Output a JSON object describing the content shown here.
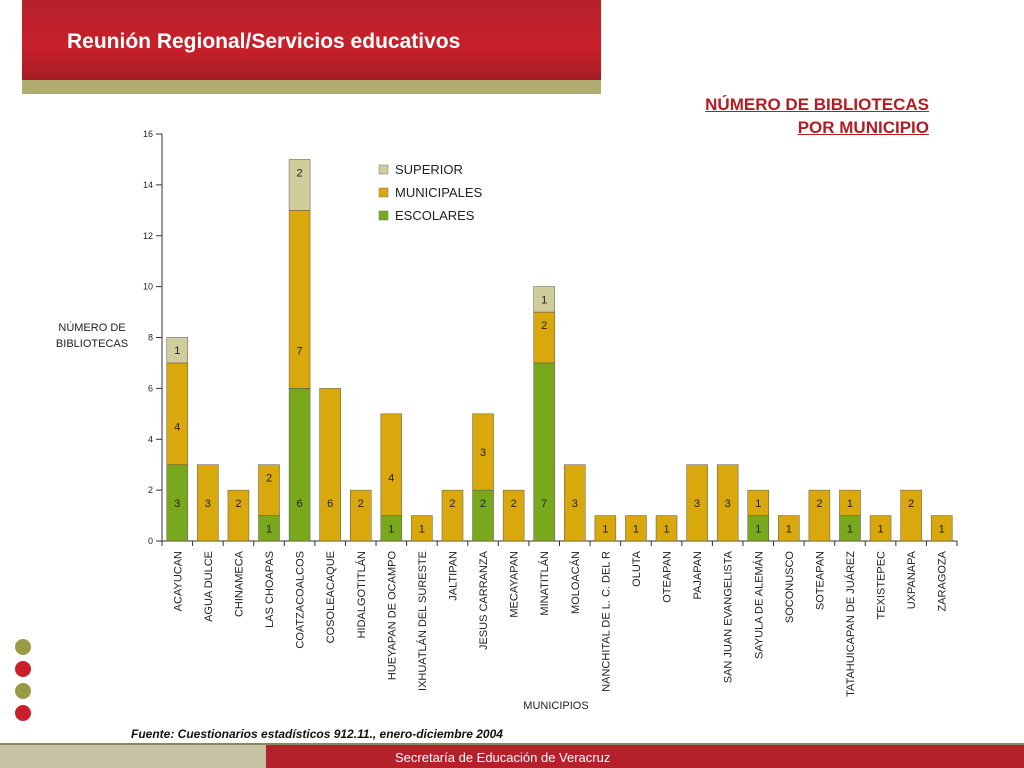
{
  "header": {
    "title": "Reunión Regional/Servicios educativos"
  },
  "chart_heading": {
    "line1": "NÚMERO DE BIBLIOTECAS",
    "line2": "POR MUNICIPIO"
  },
  "source": "Fuente: Cuestionarios estadísticos 912.11., enero-diciembre 2004",
  "footer": "Secretaría de Educación de Veracruz",
  "colors": {
    "banner_red": "#c8202a",
    "olive": "#b0ac72",
    "escolares": "#7aa81c",
    "municipales": "#d8a80c",
    "superior": "#cfcd9c"
  },
  "decor_dots": [
    "#9a9a45",
    "#c8202a",
    "#9a9a45",
    "#c8202a"
  ],
  "chart_data": {
    "type": "bar",
    "stacked": true,
    "xlabel": "MUNICIPIOS",
    "ylabel_lines": [
      "NÚMERO DE",
      "BIBLIOTECAS"
    ],
    "ylim": [
      0,
      16
    ],
    "yticks": [
      0,
      2,
      4,
      6,
      8,
      10,
      12,
      14,
      16
    ],
    "grid": false,
    "legend_position": "top-center",
    "categories": [
      "ACAYUCAN",
      "AGUA DULCE",
      "CHINAMECA",
      "LAS CHOAPAS",
      "COATZACOALCOS",
      "COSOLEACAQUE",
      "HIDALGOTITLÁN",
      "HUEYAPAN DE OCAMPO",
      "IXHUATLÁN DEL SURESTE",
      "JALTIPAN",
      "JESUS CARRANZA",
      "MECAYAPAN",
      "MINATITLÁN",
      "MOLOACÁN",
      "NANCHITAL DE L. C. DEL R",
      "OLUTA",
      "OTEAPAN",
      "PAJAPAN",
      "SAN JUAN EVANGELISTA",
      "SAYULA DE ALEMÁN",
      "SOCONUSCO",
      "SOTEAPAN",
      "TATAHUICAPAN DE JUÁREZ",
      "TEXISTEPEC",
      "UXPANAPA",
      "ZARAGOZA"
    ],
    "series": [
      {
        "name": "ESCOLARES",
        "color": "#7aa81c",
        "values": [
          3,
          0,
          0,
          1,
          6,
          0,
          0,
          1,
          0,
          0,
          2,
          0,
          7,
          0,
          0,
          0,
          0,
          0,
          0,
          1,
          0,
          0,
          1,
          0,
          0,
          0
        ]
      },
      {
        "name": "MUNICIPALES",
        "color": "#d8a80c",
        "values": [
          4,
          3,
          2,
          2,
          7,
          6,
          2,
          4,
          1,
          2,
          3,
          2,
          2,
          3,
          1,
          1,
          1,
          3,
          3,
          1,
          1,
          2,
          1,
          1,
          2,
          1
        ]
      },
      {
        "name": "SUPERIOR",
        "color": "#cfcd9c",
        "values": [
          1,
          0,
          0,
          0,
          2,
          0,
          0,
          0,
          0,
          0,
          0,
          0,
          1,
          0,
          0,
          0,
          0,
          0,
          0,
          0,
          0,
          0,
          0,
          0,
          0,
          0
        ]
      }
    ],
    "data_labels": [
      [
        "3",
        "4",
        "1"
      ],
      [
        "",
        "3",
        ""
      ],
      [
        "",
        "2",
        ""
      ],
      [
        "1",
        "2",
        ""
      ],
      [
        "6",
        "7",
        "2"
      ],
      [
        "",
        "6",
        ""
      ],
      [
        "",
        "2",
        ""
      ],
      [
        "1",
        "4",
        ""
      ],
      [
        "",
        "1",
        ""
      ],
      [
        "",
        "2",
        ""
      ],
      [
        "2",
        "3",
        ""
      ],
      [
        "",
        "2",
        ""
      ],
      [
        "7",
        "2",
        "1"
      ],
      [
        "",
        "3",
        ""
      ],
      [
        "",
        "1",
        ""
      ],
      [
        "",
        "1",
        ""
      ],
      [
        "",
        "1",
        ""
      ],
      [
        "",
        "3",
        ""
      ],
      [
        "",
        "3",
        ""
      ],
      [
        "1",
        "1",
        ""
      ],
      [
        "",
        "1",
        ""
      ],
      [
        "",
        "2",
        ""
      ],
      [
        "1",
        "1",
        ""
      ],
      [
        "",
        "1",
        ""
      ],
      [
        "",
        "2",
        ""
      ],
      [
        "",
        "1",
        ""
      ]
    ]
  }
}
